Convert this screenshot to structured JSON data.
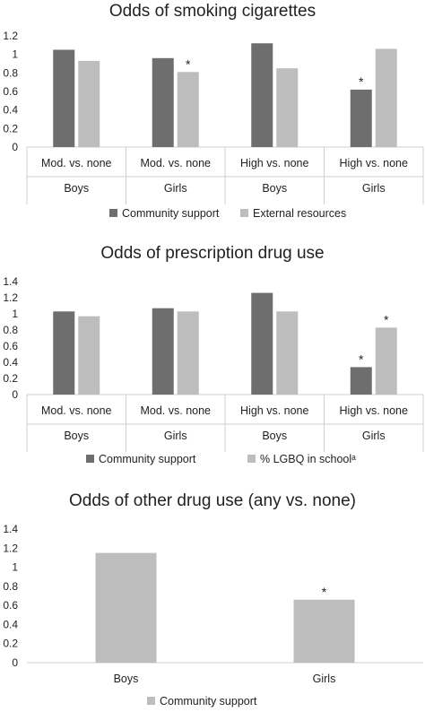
{
  "chart_data": [
    {
      "type": "bar",
      "title": "Odds of smoking cigarettes",
      "ylim": [
        0,
        1.2
      ],
      "yticks": [
        "0",
        "0.2",
        "0.4",
        "0.6",
        "0.8",
        "1",
        "1.2"
      ],
      "categories": [
        "Mod. vs. none",
        "Mod. vs. none",
        "High vs. none",
        "High vs. none"
      ],
      "groups": [
        "Boys",
        "Girls",
        "Boys",
        "Girls"
      ],
      "series": [
        {
          "name": "Community support",
          "color": "#6e6e6e",
          "values": [
            1.05,
            0.96,
            1.12,
            0.62
          ],
          "stars": [
            "",
            "",
            "",
            "*"
          ]
        },
        {
          "name": "External resources",
          "color": "#bdbdbd",
          "values": [
            0.93,
            0.81,
            0.85,
            1.06
          ],
          "stars": [
            "",
            "*",
            "",
            ""
          ]
        }
      ],
      "legend_position": "bottom",
      "grid": false
    },
    {
      "type": "bar",
      "title": "Odds of prescription drug use",
      "ylim": [
        0,
        1.4
      ],
      "yticks": [
        "0",
        "0.2",
        "0.4",
        "0.6",
        "0.8",
        "1",
        "1.2",
        "1.4"
      ],
      "categories": [
        "Mod. vs. none",
        "Mod. vs. none",
        "High vs. none",
        "High vs. none"
      ],
      "groups": [
        "Boys",
        "Girls",
        "Boys",
        "Girls"
      ],
      "series": [
        {
          "name": "Community support",
          "color": "#6e6e6e",
          "values": [
            1.03,
            1.07,
            1.26,
            0.34
          ],
          "stars": [
            "",
            "",
            "",
            "*"
          ]
        },
        {
          "name": "% LGBQ in schoolᵃ",
          "color": "#bdbdbd",
          "values": [
            0.97,
            1.03,
            1.03,
            0.83
          ],
          "stars": [
            "",
            "",
            "",
            "*"
          ]
        }
      ],
      "legend_position": "bottom",
      "grid": false
    },
    {
      "type": "bar",
      "title": "Odds of other drug use (any vs. none)",
      "ylim": [
        0,
        1.4
      ],
      "yticks": [
        "0",
        "0.2",
        "0.4",
        "0.6",
        "0.8",
        "1",
        "1.2",
        "1.4"
      ],
      "categories": [
        "Boys",
        "Girls"
      ],
      "series": [
        {
          "name": "Community support",
          "color": "#bdbdbd",
          "values": [
            1.15,
            0.66
          ],
          "stars": [
            "",
            "*"
          ]
        }
      ],
      "legend_position": "bottom",
      "grid": false
    }
  ]
}
